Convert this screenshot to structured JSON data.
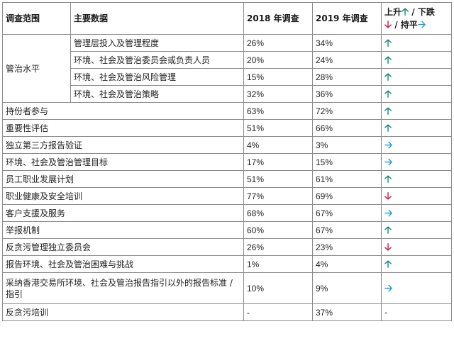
{
  "header": {
    "scope": "调查范围",
    "data": "主要数据",
    "y2018": "2018 年调查",
    "y2019": "2019 年调查",
    "trend_up": "上升",
    "trend_sep1": " / 下跌",
    "trend_sep2": " / 持平"
  },
  "arrows": {
    "up": "🡡",
    "down": "🡣",
    "flat": "🡢"
  },
  "colors": {
    "up": "#138a7a",
    "down": "#d2193e",
    "flat": "#1a9ed8"
  },
  "governance": {
    "label": "管治水平",
    "rows": [
      {
        "item": "管理层投入及管理程度",
        "y2018": "26%",
        "y2019": "34%",
        "trend": "up"
      },
      {
        "item": "环境、社会及管治委员会或负责人员",
        "y2018": "20%",
        "y2019": "24%",
        "trend": "up"
      },
      {
        "item": "环境、社会及管治风险管理",
        "y2018": "15%",
        "y2019": "28%",
        "trend": "up"
      },
      {
        "item": "环境、社会及管治策略",
        "y2018": "32%",
        "y2019": "36%",
        "trend": "up"
      }
    ]
  },
  "rows": [
    {
      "item": "持份者参与",
      "y2018": "63%",
      "y2019": "72%",
      "trend": "up"
    },
    {
      "item": "重要性评估",
      "y2018": "51%",
      "y2019": "66%",
      "trend": "up"
    },
    {
      "item": "独立第三方报告验证",
      "y2018": "4%",
      "y2019": "3%",
      "trend": "flat"
    },
    {
      "item": "环境、社会及管治管理目标",
      "y2018": "17%",
      "y2019": "15%",
      "trend": "flat"
    },
    {
      "item": "员工职业发展计划",
      "y2018": "51%",
      "y2019": "61%",
      "trend": "up"
    },
    {
      "item": "职业健康及安全培训",
      "y2018": "77%",
      "y2019": "69%",
      "trend": "down"
    },
    {
      "item": "客户支援及服务",
      "y2018": "68%",
      "y2019": "67%",
      "trend": "flat"
    },
    {
      "item": "举报机制",
      "y2018": "60%",
      "y2019": "67%",
      "trend": "up"
    },
    {
      "item": "反贪污管理独立委员会",
      "y2018": "26%",
      "y2019": "23%",
      "trend": "down"
    },
    {
      "item": "报告环境、社会及管治困难与挑战",
      "y2018": "1%",
      "y2019": "4%",
      "trend": "up"
    },
    {
      "item": "采纳香港交易所环境、社会及管治报告指引以外的报告标准 / 指引",
      "y2018": "10%",
      "y2019": "9%",
      "trend": "flat",
      "tall": true
    },
    {
      "item": "反贪污培训",
      "y2018": "-",
      "y2019": "37%",
      "trend": "-"
    }
  ]
}
